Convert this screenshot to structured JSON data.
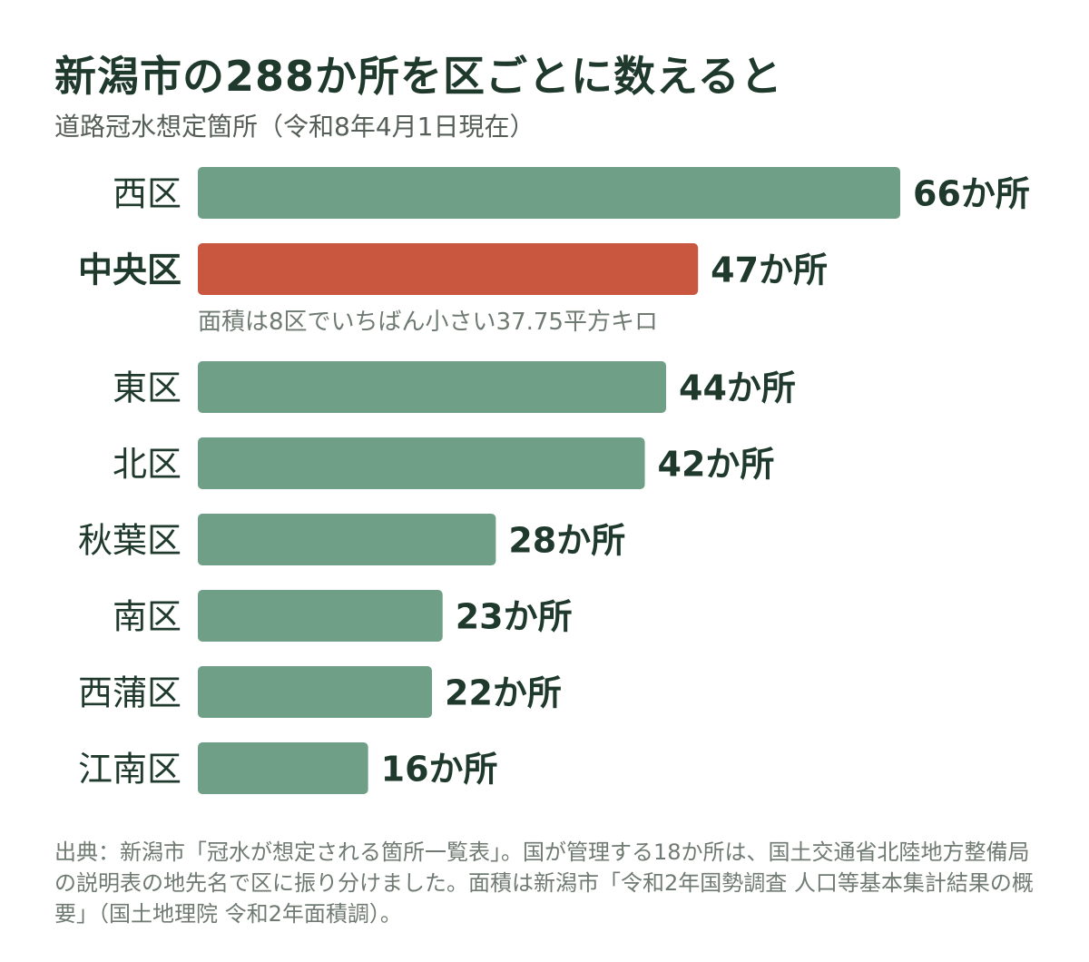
{
  "title": "新潟市の288か所を区ごとに数えると",
  "subtitle": "道路冠水想定箇所（令和8年4月1日現在）",
  "source": "出典：新潟市「冠水が想定される箇所一覧表」。国が管理する18か所は、国土交通省北陸地方整備局の説明表の地先名で区に振り分けました。面積は新潟市「令和2年国勢調査 人口等基本集計結果の概要」（国土地理院 令和2年面積調）。",
  "colors": {
    "bar": "#6f9f86",
    "highlight": "#c9573f",
    "text": "#1f3a2c",
    "note": "#6f7a72"
  },
  "chart_data": {
    "type": "bar",
    "orientation": "horizontal",
    "unit": "か所",
    "categories": [
      "西区",
      "中央区",
      "東区",
      "北区",
      "秋葉区",
      "南区",
      "西蒲区",
      "江南区"
    ],
    "values": [
      66,
      47,
      44,
      42,
      28,
      23,
      22,
      16
    ],
    "value_labels": [
      "66か所",
      "47か所",
      "44か所",
      "42か所",
      "28か所",
      "23か所",
      "22か所",
      "16か所"
    ],
    "highlight": "中央区",
    "annotation": {
      "category": "中央区",
      "text": "面積は8区でいちばん小さい37.75平方キロ"
    },
    "xlim": [
      0,
      66
    ],
    "grid": false,
    "legend": "none"
  }
}
